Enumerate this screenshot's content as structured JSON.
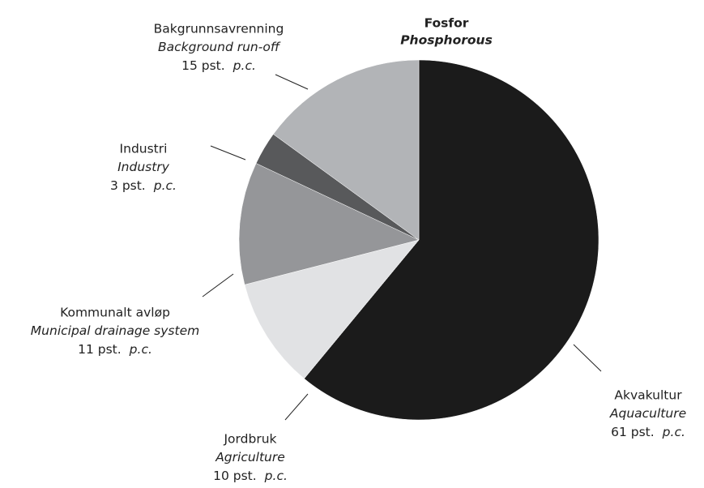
{
  "chart_data": {
    "type": "pie",
    "title": "Fosfor",
    "subtitle": "Phosphorous",
    "categories": [
      "Akvakultur",
      "Jordbruk",
      "Kommunalt avløp",
      "Industri",
      "Bakgrunnsavrenning"
    ],
    "categories_en": [
      "Aquaculture",
      "Agriculture",
      "Municipal drainage system",
      "Industry",
      "Background run-off"
    ],
    "values": [
      61,
      10,
      11,
      3,
      15
    ],
    "value_labels": [
      "61 pst.",
      "10 pst.",
      "11 pst.",
      "3 pst.",
      "15 pst."
    ],
    "value_labels_en": [
      "p.c.",
      "p.c.",
      "p.c.",
      "p.c.",
      "p.c."
    ],
    "colors": [
      "#1b1b1b",
      "#e1e2e4",
      "#959699",
      "#58595b",
      "#b2b4b7"
    ]
  }
}
